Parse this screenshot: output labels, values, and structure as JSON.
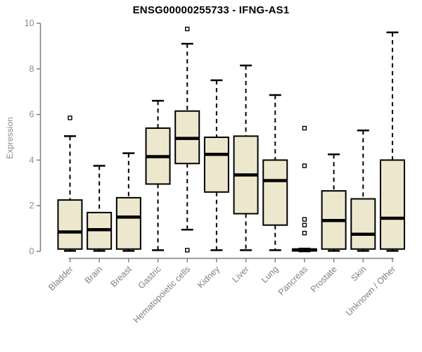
{
  "chart_data": {
    "type": "boxplot",
    "title": "ENSG00000255733 - IFNG-AS1",
    "ylabel": "Expression",
    "xlabel": "",
    "ylim": [
      0,
      10
    ],
    "yticks": [
      0,
      2,
      4,
      6,
      8,
      10
    ],
    "grid": false,
    "legend": "none",
    "categories": [
      "Bladder",
      "Brain",
      "Breast",
      "Gastric",
      "Hematopoietic cells",
      "Kidney",
      "Liver",
      "Lung",
      "Pancreas",
      "Prostate",
      "Skin",
      "Unknown / Other"
    ],
    "series": [
      {
        "name": "Bladder",
        "whisker_low": 0.02,
        "q1": 0.1,
        "median": 0.85,
        "q3": 2.25,
        "whisker_high": 5.05,
        "outliers": [
          5.85
        ]
      },
      {
        "name": "Brain",
        "whisker_low": 0.02,
        "q1": 0.1,
        "median": 0.95,
        "q3": 1.7,
        "whisker_high": 3.75,
        "outliers": []
      },
      {
        "name": "Breast",
        "whisker_low": 0.02,
        "q1": 0.1,
        "median": 1.5,
        "q3": 2.35,
        "whisker_high": 4.3,
        "outliers": []
      },
      {
        "name": "Gastric",
        "whisker_low": 0.05,
        "q1": 2.95,
        "median": 4.15,
        "q3": 5.4,
        "whisker_high": 6.6,
        "outliers": []
      },
      {
        "name": "Hematopoietic cells",
        "whisker_low": 0.95,
        "q1": 3.85,
        "median": 4.95,
        "q3": 6.15,
        "whisker_high": 9.1,
        "outliers": [
          9.75,
          0.05
        ]
      },
      {
        "name": "Kidney",
        "whisker_low": 0.05,
        "q1": 2.6,
        "median": 4.25,
        "q3": 5.0,
        "whisker_high": 7.5,
        "outliers": []
      },
      {
        "name": "Liver",
        "whisker_low": 0.05,
        "q1": 1.65,
        "median": 3.35,
        "q3": 5.05,
        "whisker_high": 8.15,
        "outliers": []
      },
      {
        "name": "Lung",
        "whisker_low": 0.05,
        "q1": 1.15,
        "median": 3.1,
        "q3": 4.0,
        "whisker_high": 6.85,
        "outliers": []
      },
      {
        "name": "Pancreas",
        "whisker_low": 0.0,
        "q1": 0.02,
        "median": 0.06,
        "q3": 0.1,
        "whisker_high": 0.12,
        "outliers": [
          5.4,
          3.75,
          1.4,
          1.15,
          0.8
        ]
      },
      {
        "name": "Prostate",
        "whisker_low": 0.02,
        "q1": 0.1,
        "median": 1.35,
        "q3": 2.65,
        "whisker_high": 4.25,
        "outliers": []
      },
      {
        "name": "Skin",
        "whisker_low": 0.02,
        "q1": 0.1,
        "median": 0.75,
        "q3": 2.3,
        "whisker_high": 5.3,
        "outliers": []
      },
      {
        "name": "Unknown / Other",
        "whisker_low": 0.02,
        "q1": 0.1,
        "median": 1.45,
        "q3": 4.0,
        "whisker_high": 9.6,
        "outliers": []
      }
    ],
    "colors": {
      "box_fill": "#ede8cd",
      "box_border": "#000000",
      "median": "#000000",
      "whisker": "#000000",
      "outlier_stroke": "#000000",
      "outlier_fill": "#ffffff",
      "axis_line": "#7f7f7f",
      "tick_label": "#8c8c8c",
      "category_label": "#808080",
      "title": "#000000",
      "background": "#ffffff"
    }
  }
}
